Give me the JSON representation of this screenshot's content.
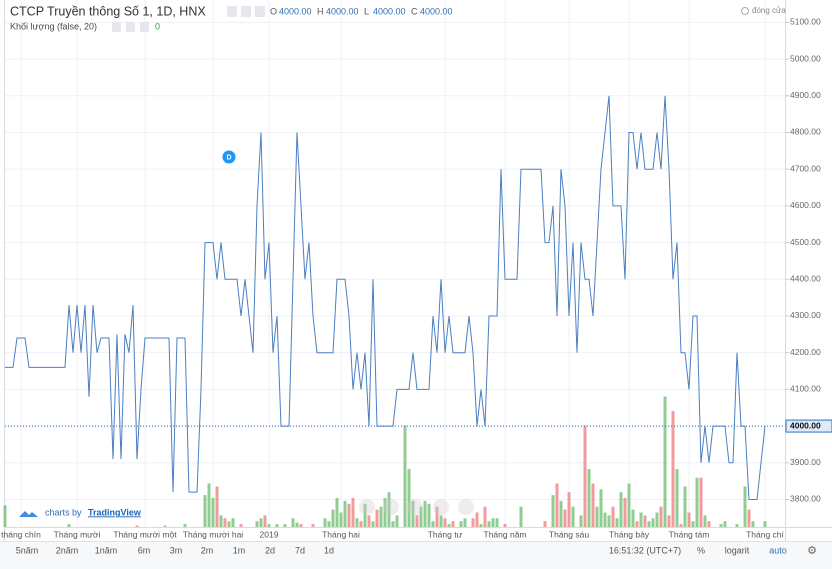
{
  "header": {
    "title": "CTCP Truyền thông Số 1, 1D, HNX",
    "ohlc": [
      {
        "key": "O",
        "value": "4000.00"
      },
      {
        "key": "H",
        "value": "4000.00"
      },
      {
        "key": "L",
        "value": "4000.00"
      },
      {
        "key": "C",
        "value": "4000.00"
      }
    ],
    "volume_label": "Khối lượng (false, 20)",
    "volume_value": "0",
    "close_label": "đóng cửa"
  },
  "chart_data": {
    "type": "line",
    "color": "#4a7fc1",
    "grid": true,
    "values": [
      4160,
      4160,
      4160,
      4240,
      4240,
      4240,
      4160,
      4160,
      4160,
      4160,
      4160,
      4160,
      4160,
      4160,
      4160,
      4160,
      4330,
      4200,
      4330,
      4200,
      4330,
      4080,
      4330,
      4200,
      4240,
      4240,
      4240,
      3910,
      4250,
      3910,
      4250,
      4200,
      4330,
      3910,
      4100,
      4240,
      4240,
      4240,
      4240,
      4240,
      4240,
      4240,
      3820,
      4240,
      4240,
      4240,
      3820,
      3820,
      3820,
      4100,
      4500,
      4500,
      4500,
      4400,
      4500,
      4400,
      4400,
      4400,
      4400,
      4300,
      4400,
      4300,
      4200,
      4600,
      4800,
      4400,
      4500,
      4200,
      4300,
      4000,
      4000,
      4000,
      4400,
      4800,
      4600,
      4400,
      4500,
      4300,
      4200,
      4200,
      4200,
      4200,
      4200,
      4400,
      4400,
      4400,
      4300,
      4100,
      4200,
      4100,
      4200,
      4000,
      4400,
      4000,
      4000,
      4000,
      4000,
      4000,
      4100,
      4100,
      4100,
      4100,
      4200,
      4100,
      4100,
      4100,
      4100,
      4300,
      4200,
      4400,
      4200,
      4300,
      4200,
      4200,
      4200,
      4200,
      4300,
      4200,
      4000,
      4100,
      4000,
      4300,
      4300,
      4300,
      4700,
      4400,
      4400,
      4400,
      4400,
      4700,
      4700,
      4700,
      4700,
      4700,
      4700,
      4500,
      4500,
      4600,
      4300,
      4700,
      4600,
      4300,
      4500,
      4200,
      4500,
      4400,
      4400,
      4300,
      4500,
      4700,
      4800,
      4900,
      4600,
      4600,
      4600,
      4400,
      4800,
      4800,
      4700,
      4800,
      4700,
      4700,
      4700,
      4800,
      4700,
      4900,
      4700,
      4400,
      4500,
      4200,
      4200,
      4100,
      4300,
      4300,
      3900,
      4000,
      3900,
      4000,
      4000,
      4000,
      4000,
      3900,
      3900,
      4200,
      4000,
      4000,
      3800,
      3800,
      3800,
      3900,
      4000
    ],
    "volume": {
      "up_color": "#7cc47f",
      "down_color": "#f08a8a",
      "vlim": [
        0,
        100
      ],
      "values": [
        15,
        0,
        0,
        0,
        0,
        0,
        0,
        0,
        0,
        0,
        0,
        0,
        0,
        0,
        0,
        0,
        2,
        0,
        0,
        0,
        0,
        0,
        0,
        0,
        0,
        0,
        0,
        0,
        0,
        0,
        0,
        0,
        0,
        1,
        0,
        0,
        0,
        0,
        0,
        0,
        1,
        0,
        0,
        0,
        0,
        2,
        0,
        0,
        0,
        0,
        22,
        30,
        20,
        28,
        8,
        6,
        4,
        6,
        0,
        2,
        0,
        0,
        0,
        4,
        6,
        8,
        2,
        0,
        2,
        0,
        2,
        0,
        6,
        3,
        2,
        0,
        0,
        2,
        0,
        0,
        6,
        4,
        12,
        20,
        10,
        18,
        16,
        20,
        6,
        4,
        16,
        8,
        4,
        12,
        14,
        20,
        24,
        4,
        8,
        0,
        70,
        40,
        18,
        8,
        14,
        18,
        16,
        4,
        14,
        8,
        6,
        2,
        4,
        0,
        4,
        6,
        0,
        6,
        10,
        2,
        14,
        4,
        6,
        6,
        0,
        2,
        0,
        0,
        0,
        14,
        0,
        0,
        0,
        0,
        0,
        4,
        0,
        22,
        30,
        18,
        12,
        24,
        14,
        0,
        8,
        70,
        40,
        30,
        14,
        26,
        10,
        8,
        14,
        6,
        24,
        20,
        30,
        12,
        4,
        10,
        8,
        4,
        6,
        10,
        14,
        90,
        8,
        80,
        40,
        2,
        28,
        10,
        4,
        34,
        34,
        8,
        4,
        0,
        0,
        2,
        4,
        0,
        0,
        2,
        0,
        28,
        12,
        4,
        0,
        0,
        4
      ]
    },
    "ylim": [
      3725,
      5161
    ],
    "yticks": [
      {
        "value": 3800,
        "label": "3800.00"
      },
      {
        "value": 3900,
        "label": "3900.00"
      },
      {
        "value": 4000,
        "label": "4000.00"
      },
      {
        "value": 4100,
        "label": "4100.00"
      },
      {
        "value": 4200,
        "label": "4200.00"
      },
      {
        "value": 4300,
        "label": "4300.00"
      },
      {
        "value": 4400,
        "label": "4400.00"
      },
      {
        "value": 4500,
        "label": "4500.00"
      },
      {
        "value": 4600,
        "label": "4600.00"
      },
      {
        "value": 4700,
        "label": "4700.00"
      },
      {
        "value": 4800,
        "label": "4800.00"
      },
      {
        "value": 4900,
        "label": "4900.00"
      },
      {
        "value": 5000,
        "label": "5000.00"
      },
      {
        "value": 5100,
        "label": "5100.00"
      }
    ],
    "xlim": [
      0,
      195
    ],
    "xticks": [
      {
        "value": 4,
        "label": "tháng chín"
      },
      {
        "value": 18,
        "label": "Tháng mười"
      },
      {
        "value": 35,
        "label": "Tháng mười một"
      },
      {
        "value": 52,
        "label": "Tháng mười hai"
      },
      {
        "value": 66,
        "label": "2019"
      },
      {
        "value": 84,
        "label": "Tháng hai"
      },
      {
        "value": 110,
        "label": "Tháng tư"
      },
      {
        "value": 125,
        "label": "Tháng năm"
      },
      {
        "value": 141,
        "label": "Tháng sáu"
      },
      {
        "value": 156,
        "label": "Tháng bảy"
      },
      {
        "value": 171,
        "label": "Tháng tám"
      },
      {
        "value": 190,
        "label": "Tháng chí"
      }
    ],
    "last_price": {
      "value": 4000,
      "label": "4000.00"
    },
    "events": [
      {
        "x": 56,
        "label": "D"
      }
    ]
  },
  "branding": {
    "prefix": "charts by",
    "name": "TradingView"
  },
  "toolbar": {
    "ranges": [
      "5năm",
      "2năm",
      "1năm",
      "6m",
      "3m",
      "2m",
      "1m",
      "2d",
      "7d",
      "1d"
    ],
    "time": "16:51:32 (UTC+7)",
    "options": [
      "%",
      "logarit",
      "auto"
    ]
  }
}
